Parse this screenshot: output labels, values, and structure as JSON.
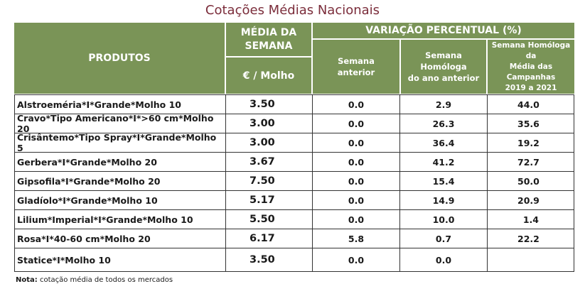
{
  "title": "Cotações Médias Nacionais",
  "header": {
    "produtos": "PRODUTOS",
    "media_line1": "MÉDIA DA",
    "media_line2": "SEMANA",
    "unit": "€ / Molho",
    "variacao": "VARIAÇÃO PERCENTUAL (%)",
    "col_semana_l1": "Semana",
    "col_semana_l2": "anterior",
    "col_homologa_l1": "Semana Homóloga",
    "col_homologa_l2": "do ano anterior",
    "col_campanhas_l1": "Semana Homóloga da",
    "col_campanhas_l2": "Média das Campanhas",
    "col_campanhas_l3": "2019 a 2021"
  },
  "rows": [
    {
      "produto": "Alstroeméria*I*Grande*Molho 10",
      "media": "3.50",
      "semana": "0.0",
      "homologa": "2.9",
      "campanhas": "44.0"
    },
    {
      "produto": "Cravo*Tipo Americano*I*>60 cm*Molho 20",
      "media": "3.00",
      "semana": "0.0",
      "homologa": "26.3",
      "campanhas": "35.6"
    },
    {
      "produto": "Crisântemo*Tipo Spray*I*Grande*Molho 5",
      "media": "3.00",
      "semana": "0.0",
      "homologa": "36.4",
      "campanhas": "19.2"
    },
    {
      "produto": "Gerbera*I*Grande*Molho 20",
      "media": "3.67",
      "semana": "0.0",
      "homologa": "41.2",
      "campanhas": "72.7"
    },
    {
      "produto": "Gipsofila*I*Grande*Molho 20",
      "media": "7.50",
      "semana": "0.0",
      "homologa": "15.4",
      "campanhas": "50.0"
    },
    {
      "produto": "Gladíolo*I*Grande*Molho 10",
      "media": "5.17",
      "semana": "0.0",
      "homologa": "14.9",
      "campanhas": "20.9"
    },
    {
      "produto": "Lilium*Imperial*I*Grande*Molho 10",
      "media": "5.50",
      "semana": "0.0",
      "homologa": "10.0",
      "campanhas": "1.4"
    },
    {
      "produto": "Rosa*I*40-60 cm*Molho 20",
      "media": "6.17",
      "semana": "5.8",
      "homologa": "0.7",
      "campanhas": "22.2"
    },
    {
      "produto": "Statice*I*Molho 10",
      "media": "3.50",
      "semana": "0.0",
      "homologa": "0.0",
      "campanhas": ""
    }
  ],
  "note": {
    "label": "Nota:",
    "text": " cotação média de todos os mercados"
  }
}
